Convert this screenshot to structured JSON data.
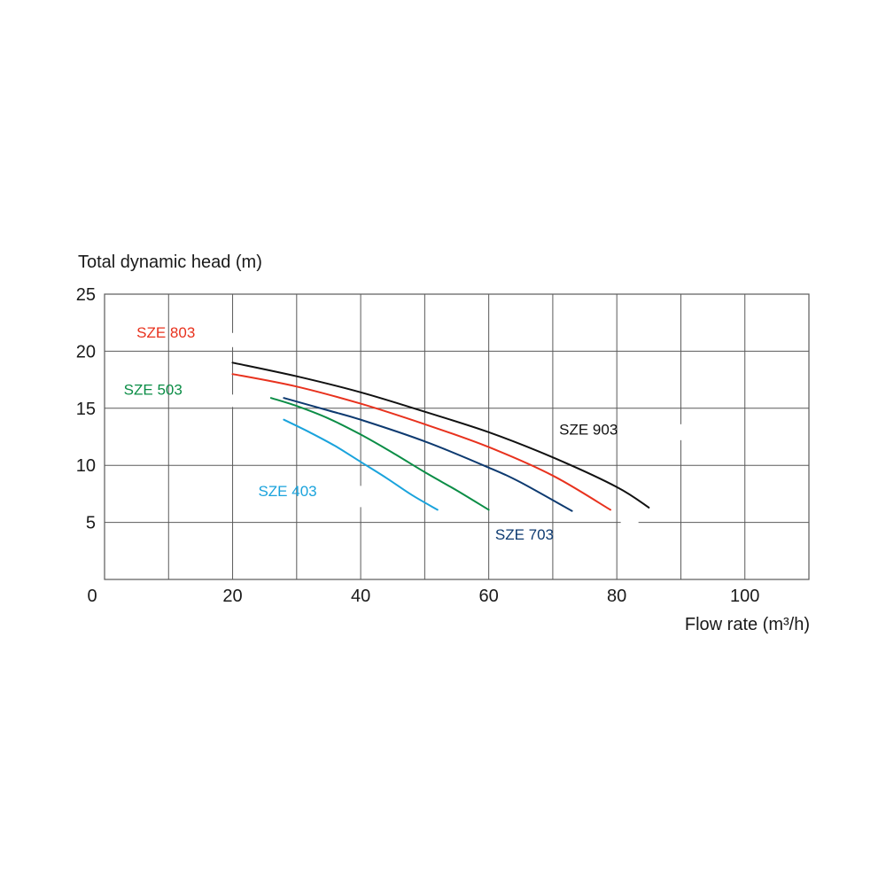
{
  "chart_data": {
    "type": "line",
    "title": "",
    "ylabel": "Total dynamic head (m)",
    "xlabel": "Flow rate (m³/h)",
    "xlim": [
      0,
      110
    ],
    "ylim": [
      0,
      25
    ],
    "x_ticks": [
      0,
      20,
      40,
      60,
      80,
      100
    ],
    "y_ticks": [
      5,
      10,
      15,
      20,
      25
    ],
    "x_grid_step": 10,
    "y_grid_step": 5,
    "grid": true,
    "legend": "inline labels",
    "series": [
      {
        "name": "SZE 903",
        "color": "#111111",
        "x": [
          20,
          30,
          40,
          50,
          60,
          70,
          80,
          85
        ],
        "y": [
          19,
          17.8,
          16.4,
          14.7,
          12.9,
          10.7,
          8.1,
          6.3
        ]
      },
      {
        "name": "SZE 803",
        "color": "#e8321e",
        "x": [
          20,
          30,
          40,
          50,
          60,
          70,
          79
        ],
        "y": [
          18,
          16.9,
          15.4,
          13.6,
          11.6,
          9.1,
          6.1
        ]
      },
      {
        "name": "SZE 703",
        "color": "#0d3a70",
        "x": [
          28,
          35,
          40,
          50,
          60,
          65,
          73
        ],
        "y": [
          15.9,
          14.8,
          14,
          12.1,
          9.8,
          8.5,
          6
        ]
      },
      {
        "name": "SZE 503",
        "color": "#0b8d46",
        "x": [
          26,
          30,
          35,
          40,
          45,
          50,
          55,
          60
        ],
        "y": [
          15.9,
          15.2,
          14.1,
          12.7,
          11.1,
          9.4,
          7.8,
          6.1
        ]
      },
      {
        "name": "SZE 403",
        "color": "#1aa3dc",
        "x": [
          28,
          32,
          36,
          40,
          44,
          48,
          52
        ],
        "y": [
          14,
          12.9,
          11.7,
          10.3,
          8.9,
          7.4,
          6.1
        ]
      }
    ],
    "labels": [
      {
        "series": "SZE 803",
        "text": "SZE 803",
        "x": 5,
        "y": 21.2,
        "color": "#e8321e"
      },
      {
        "series": "SZE 503",
        "text": "SZE 503",
        "x": 3,
        "y": 16.2,
        "color": "#0b8d46"
      },
      {
        "series": "SZE 403",
        "text": "SZE 403",
        "x": 24,
        "y": 7.3,
        "color": "#1aa3dc"
      },
      {
        "series": "SZE 903",
        "text": "SZE 903",
        "x": 71,
        "y": 12.7,
        "color": "#111111"
      },
      {
        "series": "SZE 703",
        "text": "SZE 703",
        "x": 61,
        "y": 3.5,
        "color": "#0d3a70"
      }
    ]
  }
}
